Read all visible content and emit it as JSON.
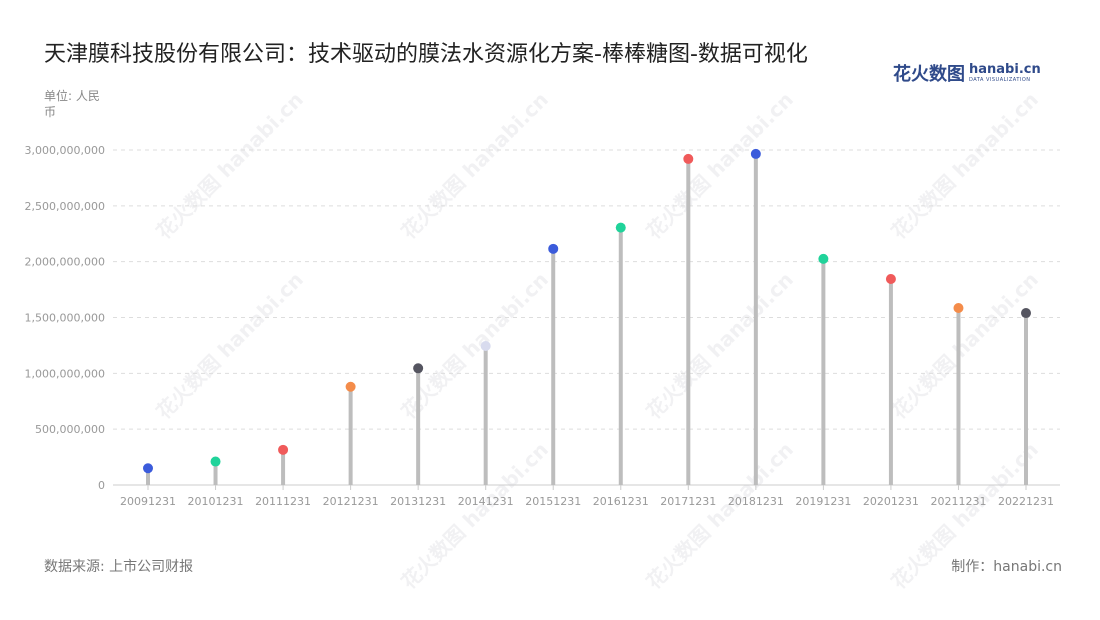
{
  "page": {
    "title": "天津膜科技股份有限公司：技术驱动的膜法水资源化方案-棒棒糖图-数据可视化",
    "unit": "单位: 人民币",
    "source": "数据来源: 上市公司财报",
    "credit": "制作：hanabi.cn",
    "logo_cn": "花火数图",
    "logo_en": "hanabi.cn",
    "logo_sub": "DATA VISUALIZATION",
    "watermark": "花火数图 hanabi.cn"
  },
  "chart_data": {
    "type": "lollipop",
    "title": "天津膜科技股份有限公司：技术驱动的膜法水资源化方案-棒棒糖图-数据可视化",
    "ylabel": "单位: 人民币",
    "ylim": [
      0,
      3000000000
    ],
    "y_ticks": [
      "0",
      "500,000,000",
      "1,000,000,000",
      "1,500,000,000",
      "2,000,000,000",
      "2,500,000,000",
      "3,000,000,000"
    ],
    "y_tick_values": [
      0,
      500000000,
      1000000000,
      1500000000,
      2000000000,
      2500000000,
      3000000000
    ],
    "grid": true,
    "categories": [
      "20091231",
      "20101231",
      "20111231",
      "20121231",
      "20131231",
      "20141231",
      "20151231",
      "20161231",
      "20171231",
      "20181231",
      "20191231",
      "20201231",
      "20211231",
      "20221231"
    ],
    "values": [
      150000000,
      210000000,
      315000000,
      880000000,
      1045000000,
      1245000000,
      2115000000,
      2305000000,
      2920000000,
      2965000000,
      2025000000,
      1845000000,
      1585000000,
      1540000000
    ],
    "colors": [
      "#3b5bdb",
      "#20d39a",
      "#f05a5a",
      "#f48c4a",
      "#555560",
      "#d8dbee",
      "#3b5bdb",
      "#20d39a",
      "#f05a5a",
      "#3b5bdb",
      "#20d39a",
      "#f05a5a",
      "#f48c4a",
      "#555560"
    ],
    "stem_color": "#bdbdbd",
    "grid_color": "#dddddd"
  }
}
